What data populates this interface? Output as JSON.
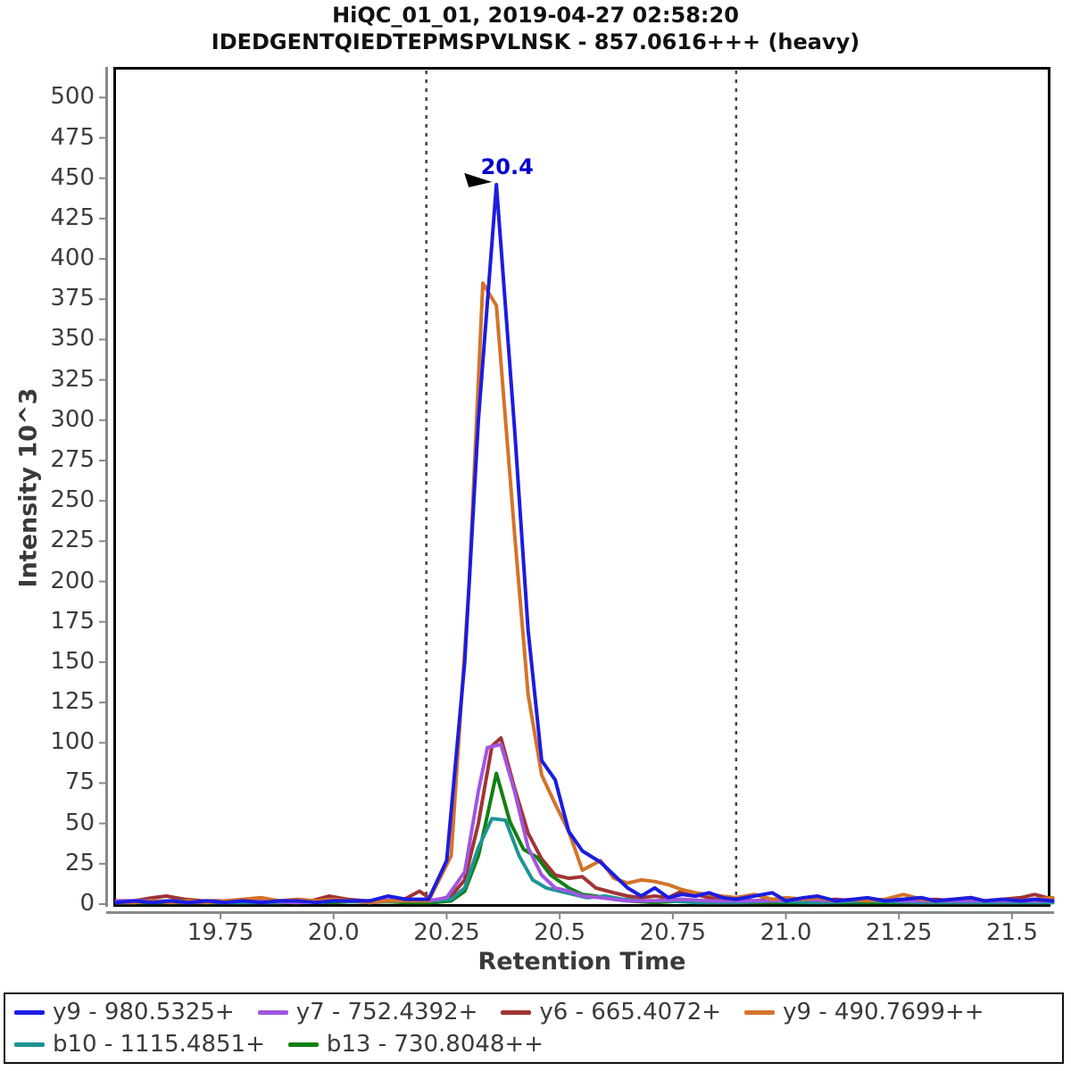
{
  "title": {
    "line1": "HiQC_01_01, 2019-04-27 02:58:20",
    "line2": "IDEDGENTQIEDTEPMSPVLNSK - 857.0616+++ (heavy)"
  },
  "chart_data": {
    "type": "line",
    "title": "HiQC_01_01, 2019-04-27 02:58:20",
    "subtitle": "IDEDGENTQIEDTEPMSPVLNSK - 857.0616+++ (heavy)",
    "xlabel": "Retention Time",
    "ylabel": "Intensity 10^3",
    "xlim": [
      19.513,
      21.585
    ],
    "ylim": [
      0,
      519
    ],
    "grid": false,
    "legend_position": "bottom",
    "x_ticks": [
      19.75,
      20.0,
      20.25,
      20.5,
      20.75,
      21.0,
      21.25,
      21.5
    ],
    "x_tick_labels": [
      "19.75",
      "20.0",
      "20.25",
      "20.5",
      "20.75",
      "21.0",
      "21.25",
      "21.5"
    ],
    "y_ticks": [
      0,
      25,
      50,
      75,
      100,
      125,
      150,
      175,
      200,
      225,
      250,
      275,
      300,
      325,
      350,
      375,
      400,
      425,
      450,
      475,
      500
    ],
    "peak_boundaries": [
      20.205,
      20.89
    ],
    "peak_annotation": {
      "text": "20.4",
      "x": 20.36,
      "y": 446,
      "color": "#0000cc"
    },
    "series": [
      {
        "name": "y9 - 980.5325+",
        "color": "#1c1ce0",
        "z": 6,
        "legend_row": 0,
        "points": [
          [
            19.52,
            1
          ],
          [
            19.56,
            2
          ],
          [
            19.6,
            1
          ],
          [
            19.64,
            2
          ],
          [
            19.68,
            1
          ],
          [
            19.72,
            2
          ],
          [
            19.76,
            1
          ],
          [
            19.8,
            2
          ],
          [
            19.84,
            1
          ],
          [
            19.88,
            2
          ],
          [
            19.92,
            2
          ],
          [
            19.96,
            1
          ],
          [
            20.0,
            2
          ],
          [
            20.04,
            2
          ],
          [
            20.08,
            2
          ],
          [
            20.12,
            5
          ],
          [
            20.16,
            3
          ],
          [
            20.21,
            3
          ],
          [
            20.25,
            27
          ],
          [
            20.29,
            150
          ],
          [
            20.32,
            300
          ],
          [
            20.36,
            446
          ],
          [
            20.4,
            295
          ],
          [
            20.43,
            170
          ],
          [
            20.46,
            89
          ],
          [
            20.49,
            77
          ],
          [
            20.52,
            45
          ],
          [
            20.55,
            33
          ],
          [
            20.59,
            26
          ],
          [
            20.62,
            18
          ],
          [
            20.65,
            10
          ],
          [
            20.68,
            5
          ],
          [
            20.71,
            10
          ],
          [
            20.74,
            4
          ],
          [
            20.77,
            6
          ],
          [
            20.8,
            5
          ],
          [
            20.83,
            7
          ],
          [
            20.86,
            4
          ],
          [
            20.89,
            3
          ],
          [
            20.93,
            5
          ],
          [
            20.97,
            7
          ],
          [
            21.0,
            2
          ],
          [
            21.04,
            4
          ],
          [
            21.07,
            5
          ],
          [
            21.11,
            2
          ],
          [
            21.15,
            3
          ],
          [
            21.18,
            4
          ],
          [
            21.22,
            2
          ],
          [
            21.26,
            3
          ],
          [
            21.3,
            4
          ],
          [
            21.33,
            2
          ],
          [
            21.37,
            3
          ],
          [
            21.41,
            4
          ],
          [
            21.44,
            2
          ],
          [
            21.48,
            3
          ],
          [
            21.52,
            2
          ],
          [
            21.55,
            3
          ],
          [
            21.59,
            2
          ]
        ]
      },
      {
        "name": "y7 - 752.4392+",
        "color": "#a155e0",
        "z": 4,
        "legend_row": 0,
        "points": [
          [
            19.52,
            2
          ],
          [
            19.6,
            2
          ],
          [
            19.68,
            1
          ],
          [
            19.76,
            2
          ],
          [
            19.84,
            2
          ],
          [
            19.92,
            1
          ],
          [
            20.0,
            2
          ],
          [
            20.08,
            2
          ],
          [
            20.16,
            3
          ],
          [
            20.21,
            2
          ],
          [
            20.25,
            4
          ],
          [
            20.29,
            20
          ],
          [
            20.32,
            70
          ],
          [
            20.34,
            97
          ],
          [
            20.37,
            99
          ],
          [
            20.4,
            70
          ],
          [
            20.43,
            35
          ],
          [
            20.46,
            18
          ],
          [
            20.49,
            10
          ],
          [
            20.52,
            8
          ],
          [
            20.55,
            5
          ],
          [
            20.59,
            4
          ],
          [
            20.62,
            3
          ],
          [
            20.65,
            2
          ],
          [
            20.71,
            2
          ],
          [
            20.77,
            3
          ],
          [
            20.83,
            2
          ],
          [
            20.89,
            2
          ],
          [
            20.97,
            2
          ],
          [
            21.04,
            3
          ],
          [
            21.11,
            2
          ],
          [
            21.18,
            3
          ],
          [
            21.26,
            2
          ],
          [
            21.33,
            2
          ],
          [
            21.41,
            2
          ],
          [
            21.48,
            2
          ],
          [
            21.55,
            2
          ],
          [
            21.59,
            2
          ]
        ]
      },
      {
        "name": "y6 - 665.4072+",
        "color": "#a03434",
        "z": 1,
        "legend_row": 0,
        "points": [
          [
            19.52,
            2
          ],
          [
            19.56,
            2
          ],
          [
            19.6,
            4
          ],
          [
            19.63,
            5
          ],
          [
            19.67,
            3
          ],
          [
            19.71,
            2
          ],
          [
            19.75,
            2
          ],
          [
            19.79,
            1
          ],
          [
            19.83,
            2
          ],
          [
            19.87,
            2
          ],
          [
            19.91,
            1
          ],
          [
            19.95,
            2
          ],
          [
            19.99,
            5
          ],
          [
            20.03,
            3
          ],
          [
            20.07,
            2
          ],
          [
            20.11,
            2
          ],
          [
            20.15,
            2
          ],
          [
            20.19,
            8
          ],
          [
            20.22,
            2
          ],
          [
            20.26,
            5
          ],
          [
            20.29,
            15
          ],
          [
            20.32,
            50
          ],
          [
            20.35,
            98
          ],
          [
            20.37,
            103
          ],
          [
            20.4,
            72
          ],
          [
            20.43,
            44
          ],
          [
            20.46,
            28
          ],
          [
            20.49,
            18
          ],
          [
            20.52,
            16
          ],
          [
            20.55,
            17
          ],
          [
            20.58,
            10
          ],
          [
            20.62,
            7
          ],
          [
            20.65,
            5
          ],
          [
            20.68,
            4
          ],
          [
            20.71,
            5
          ],
          [
            20.74,
            4
          ],
          [
            20.77,
            8
          ],
          [
            20.8,
            6
          ],
          [
            20.83,
            4
          ],
          [
            20.86,
            3
          ],
          [
            20.89,
            3
          ],
          [
            20.93,
            2
          ],
          [
            20.97,
            3
          ],
          [
            21.0,
            2
          ],
          [
            21.04,
            4
          ],
          [
            21.07,
            2
          ],
          [
            21.11,
            3
          ],
          [
            21.15,
            2
          ],
          [
            21.18,
            3
          ],
          [
            21.22,
            2
          ],
          [
            21.26,
            3
          ],
          [
            21.3,
            2
          ],
          [
            21.33,
            3
          ],
          [
            21.37,
            2
          ],
          [
            21.41,
            3
          ],
          [
            21.44,
            2
          ],
          [
            21.48,
            3
          ],
          [
            21.52,
            4
          ],
          [
            21.55,
            6
          ],
          [
            21.59,
            3
          ]
        ]
      },
      {
        "name": "y9 - 490.7699++",
        "color": "#d4732a",
        "z": 5,
        "legend_row": 0,
        "points": [
          [
            19.52,
            1
          ],
          [
            19.56,
            1
          ],
          [
            19.6,
            2
          ],
          [
            19.64,
            1
          ],
          [
            19.68,
            2
          ],
          [
            19.72,
            1
          ],
          [
            19.76,
            2
          ],
          [
            19.8,
            3
          ],
          [
            19.84,
            4
          ],
          [
            19.88,
            2
          ],
          [
            19.92,
            3
          ],
          [
            19.96,
            2
          ],
          [
            20.0,
            3
          ],
          [
            20.04,
            2
          ],
          [
            20.08,
            1
          ],
          [
            20.12,
            2
          ],
          [
            20.16,
            2
          ],
          [
            20.21,
            2
          ],
          [
            20.26,
            30
          ],
          [
            20.3,
            200
          ],
          [
            20.33,
            385
          ],
          [
            20.36,
            371
          ],
          [
            20.4,
            230
          ],
          [
            20.43,
            130
          ],
          [
            20.46,
            80
          ],
          [
            20.49,
            62
          ],
          [
            20.52,
            45
          ],
          [
            20.55,
            21
          ],
          [
            20.59,
            27
          ],
          [
            20.62,
            16
          ],
          [
            20.65,
            13
          ],
          [
            20.68,
            15
          ],
          [
            20.71,
            14
          ],
          [
            20.74,
            12
          ],
          [
            20.77,
            9
          ],
          [
            20.8,
            7
          ],
          [
            20.83,
            6
          ],
          [
            20.86,
            5
          ],
          [
            20.89,
            4
          ],
          [
            20.93,
            6
          ],
          [
            20.97,
            3
          ],
          [
            21.0,
            4
          ],
          [
            21.04,
            3
          ],
          [
            21.07,
            4
          ],
          [
            21.11,
            2
          ],
          [
            21.15,
            3
          ],
          [
            21.18,
            2
          ],
          [
            21.22,
            3
          ],
          [
            21.26,
            6
          ],
          [
            21.3,
            3
          ],
          [
            21.33,
            2
          ],
          [
            21.37,
            3
          ],
          [
            21.41,
            4
          ],
          [
            21.44,
            2
          ],
          [
            21.48,
            3
          ],
          [
            21.52,
            2
          ],
          [
            21.55,
            3
          ],
          [
            21.59,
            4
          ]
        ]
      },
      {
        "name": "b10 - 1115.4851+",
        "color": "#1e9494",
        "z": 3,
        "legend_row": 1,
        "points": [
          [
            19.52,
            1
          ],
          [
            19.64,
            2
          ],
          [
            19.76,
            1
          ],
          [
            19.88,
            1
          ],
          [
            20.0,
            2
          ],
          [
            20.08,
            1
          ],
          [
            20.16,
            2
          ],
          [
            20.22,
            2
          ],
          [
            20.26,
            3
          ],
          [
            20.29,
            10
          ],
          [
            20.32,
            35
          ],
          [
            20.35,
            53
          ],
          [
            20.38,
            52
          ],
          [
            20.41,
            30
          ],
          [
            20.44,
            15
          ],
          [
            20.47,
            10
          ],
          [
            20.5,
            8
          ],
          [
            20.53,
            6
          ],
          [
            20.56,
            4
          ],
          [
            20.6,
            5
          ],
          [
            20.64,
            3
          ],
          [
            20.68,
            2
          ],
          [
            20.74,
            2
          ],
          [
            20.8,
            1
          ],
          [
            20.89,
            1
          ],
          [
            20.97,
            2
          ],
          [
            21.07,
            1
          ],
          [
            21.18,
            2
          ],
          [
            21.3,
            1
          ],
          [
            21.41,
            1
          ],
          [
            21.52,
            1
          ],
          [
            21.59,
            1
          ]
        ]
      },
      {
        "name": "b13 - 730.8048++",
        "color": "#128012",
        "z": 2,
        "legend_row": 1,
        "points": [
          [
            19.52,
            1
          ],
          [
            19.64,
            1
          ],
          [
            19.76,
            1
          ],
          [
            19.88,
            2
          ],
          [
            20.0,
            1
          ],
          [
            20.08,
            2
          ],
          [
            20.16,
            1
          ],
          [
            20.22,
            1
          ],
          [
            20.26,
            2
          ],
          [
            20.29,
            8
          ],
          [
            20.32,
            30
          ],
          [
            20.34,
            55
          ],
          [
            20.36,
            81
          ],
          [
            20.39,
            51
          ],
          [
            20.42,
            34
          ],
          [
            20.45,
            29
          ],
          [
            20.48,
            18
          ],
          [
            20.52,
            10
          ],
          [
            20.55,
            6
          ],
          [
            20.58,
            5
          ],
          [
            20.62,
            3
          ],
          [
            20.65,
            2
          ],
          [
            20.71,
            1
          ],
          [
            20.77,
            2
          ],
          [
            20.83,
            1
          ],
          [
            20.89,
            1
          ],
          [
            20.97,
            1
          ],
          [
            21.07,
            1
          ],
          [
            21.18,
            1
          ],
          [
            21.3,
            1
          ],
          [
            21.41,
            1
          ],
          [
            21.52,
            1
          ],
          [
            21.59,
            1
          ]
        ]
      }
    ]
  },
  "colors": {
    "frame": "#000000",
    "axis_line": "#888888",
    "tick_text": "#3c3c3c",
    "boundary_line": "#444444",
    "annotation_text": "#0000cc",
    "annotation_arrow": "#000000"
  }
}
